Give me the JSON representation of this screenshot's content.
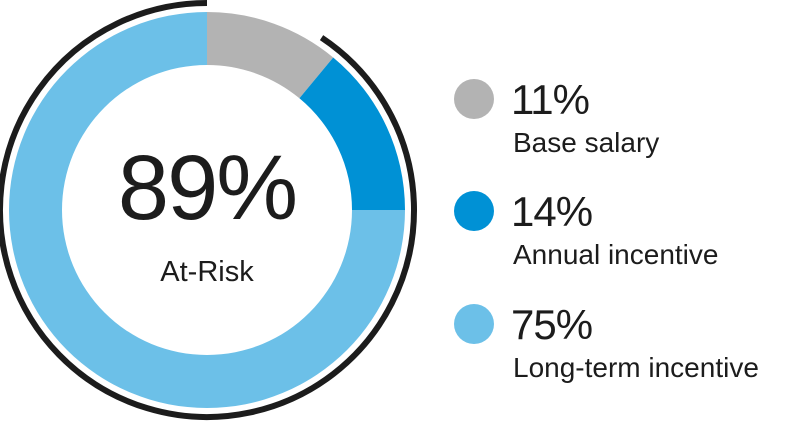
{
  "chart_data": {
    "type": "pie",
    "variant": "donut",
    "center": {
      "value": "89%",
      "label": "At-Risk"
    },
    "bracket_covers": [
      "Annual incentive",
      "Long-term incentive"
    ],
    "slices": [
      {
        "name": "Base salary",
        "value": 11,
        "value_label": "11%",
        "color": "#b3b3b3"
      },
      {
        "name": "Annual incentive",
        "value": 14,
        "value_label": "14%",
        "color": "#0091d5"
      },
      {
        "name": "Long-term incentive",
        "value": 75,
        "value_label": "75%",
        "color": "#6cc0e8"
      }
    ],
    "bracket_color": "#1c1c1c"
  }
}
